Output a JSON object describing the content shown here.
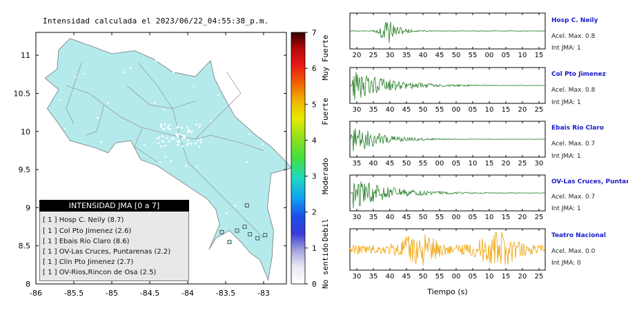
{
  "map": {
    "title": "Intensidad calculada el 2023/06/22_04:55:38_p.m.",
    "x_ticks": [
      "-86",
      "-85.5",
      "-85",
      "-84.5",
      "-84",
      "-83.5",
      "-83"
    ],
    "y_ticks": [
      "8",
      "8.5",
      "9",
      "9.5",
      "10",
      "10.5",
      "11"
    ],
    "land_color": "#b4eaec",
    "colorbar": {
      "ticks": [
        "0",
        "1",
        "2",
        "3",
        "4",
        "5",
        "6",
        "7"
      ],
      "labels": [
        "No sentido",
        "Debil",
        "Moderado",
        "Fuerte",
        "Muy Fuerte"
      ]
    },
    "legend": {
      "title": "INTENSIDAD JMA [0 a 7]",
      "items": [
        "[ 1 ]  Hosp C. Neily (8.7)",
        "[ 1 ]  Col Pto Jimenez (2.6)",
        "[ 1 ]  Ebais Rio Claro (8.6)",
        "[ 1 ]  OV-Las Cruces, Puntarenas (2.2)",
        "[ 1 ]  Clin Pto Jimenez (2.7)",
        "[ 1 ]  OV-Rios,Rincon de Osa (2.5)"
      ]
    }
  },
  "waveforms": {
    "xlabel": "Tiempo (s)",
    "panels": [
      {
        "name": "Hosp C. Neily",
        "accel": "Acel. Max. 0.8",
        "jma": "Int JMA: 1",
        "color": "#1f7a1f",
        "ticks": [
          "20",
          "25",
          "30",
          "35",
          "40",
          "45",
          "50",
          "55",
          "00",
          "05",
          "10",
          "15"
        ]
      },
      {
        "name": "Col Pto Jimenez",
        "accel": "Acel. Max. 0.8",
        "jma": "Int JMA: 1",
        "color": "#1f7a1f",
        "ticks": [
          "30",
          "35",
          "40",
          "45",
          "50",
          "55",
          "00",
          "05",
          "10",
          "15",
          "20",
          "25"
        ]
      },
      {
        "name": "Ebais Rio Claro",
        "accel": "Acel. Max. 0.7",
        "jma": "Int JMA: 1",
        "color": "#1f7a1f",
        "ticks": [
          "35",
          "40",
          "45",
          "50",
          "55",
          "00",
          "05",
          "10",
          "15",
          "20",
          "25",
          "30"
        ]
      },
      {
        "name": "OV-Las Cruces, Puntar",
        "accel": "Acel. Max. 0.7",
        "jma": "Int JMA: 1",
        "color": "#1f7a1f",
        "ticks": [
          "30",
          "35",
          "40",
          "45",
          "50",
          "55",
          "00",
          "05",
          "10",
          "15",
          "20",
          "25"
        ]
      },
      {
        "name": "Teatro Nacional",
        "accel": "Acel. Max. 0.0",
        "jma": "Int JMA: 0",
        "color": "#f0a000",
        "ticks": [
          "30",
          "35",
          "40",
          "45",
          "50",
          "55",
          "00",
          "05",
          "10",
          "15",
          "20",
          "25"
        ]
      }
    ]
  },
  "chart_data": [
    {
      "type": "map",
      "title": "Intensidad calculada el 2023/06/22_04:55:38_p.m.",
      "xlim": [
        -86,
        -82.7
      ],
      "ylim": [
        8,
        11.3
      ],
      "stations": [
        {
          "label": "Hosp C. Neily",
          "jma": 1
        },
        {
          "label": "Col Pto Jimenez",
          "jma": 1
        },
        {
          "label": "Ebais Rio Claro",
          "jma": 1
        },
        {
          "label": "OV-Las Cruces, Puntarenas",
          "jma": 1
        },
        {
          "label": "Clin Pto Jimenez",
          "jma": 1
        },
        {
          "label": "OV-Rios,Rincon de Osa",
          "jma": 1
        }
      ]
    },
    {
      "type": "line",
      "xlabel": "Tiempo (s)",
      "series": [
        {
          "name": "Hosp C. Neily",
          "peak_accel": 0.8,
          "jma": 1
        },
        {
          "name": "Col Pto Jimenez",
          "peak_accel": 0.8,
          "jma": 1
        },
        {
          "name": "Ebais Rio Claro",
          "peak_accel": 0.7,
          "jma": 1
        },
        {
          "name": "OV-Las Cruces, Puntar",
          "peak_accel": 0.7,
          "jma": 1
        },
        {
          "name": "Teatro Nacional",
          "peak_accel": 0.0,
          "jma": 0
        }
      ]
    }
  ]
}
